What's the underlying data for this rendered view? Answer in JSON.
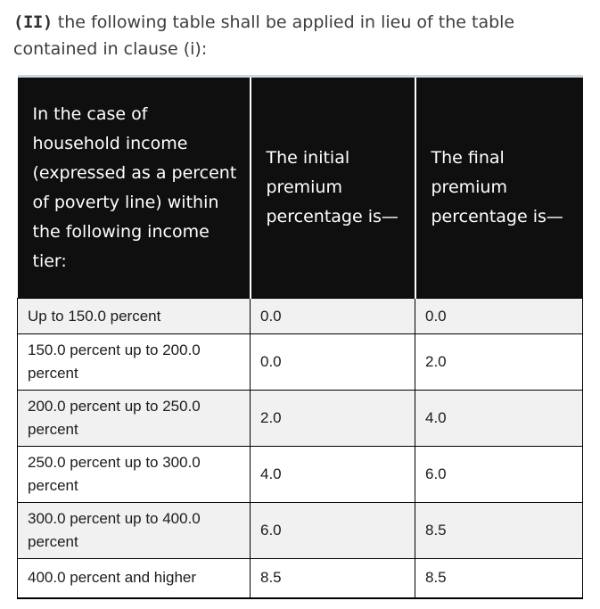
{
  "intro": {
    "marker": "(II)",
    "line1_rest": " the following table shall be applied in lieu of the table",
    "line2": "contained in clause (i):"
  },
  "table": {
    "headers": {
      "tier": "In the case of household income (expressed as a percent of poverty line) within the following income tier:",
      "initial": "The initial premium percentage is—",
      "final": "The final premium percentage is—"
    },
    "rows": [
      {
        "tier": "Up to 150.0 percent",
        "initial": "0.0",
        "final": "0.0"
      },
      {
        "tier": "150.0 percent up to 200.0 percent",
        "initial": "0.0",
        "final": "2.0"
      },
      {
        "tier": "200.0 percent up to 250.0 percent",
        "initial": "2.0",
        "final": "4.0"
      },
      {
        "tier": "250.0 percent up to 300.0 percent",
        "initial": "4.0",
        "final": "6.0"
      },
      {
        "tier": "300.0 percent up to 400.0 percent",
        "initial": "6.0",
        "final": "8.5"
      },
      {
        "tier": "400.0 percent and higher",
        "initial": "8.5",
        "final": "8.5"
      }
    ],
    "colors": {
      "header_bg": "#0f0f0f",
      "header_text": "#ffffff",
      "row_alt_bg": "#f1f1f1",
      "table_top_border": "#ccd9e0",
      "body_text": "#1c1c1c",
      "intro_text": "#3d3d3d"
    }
  }
}
